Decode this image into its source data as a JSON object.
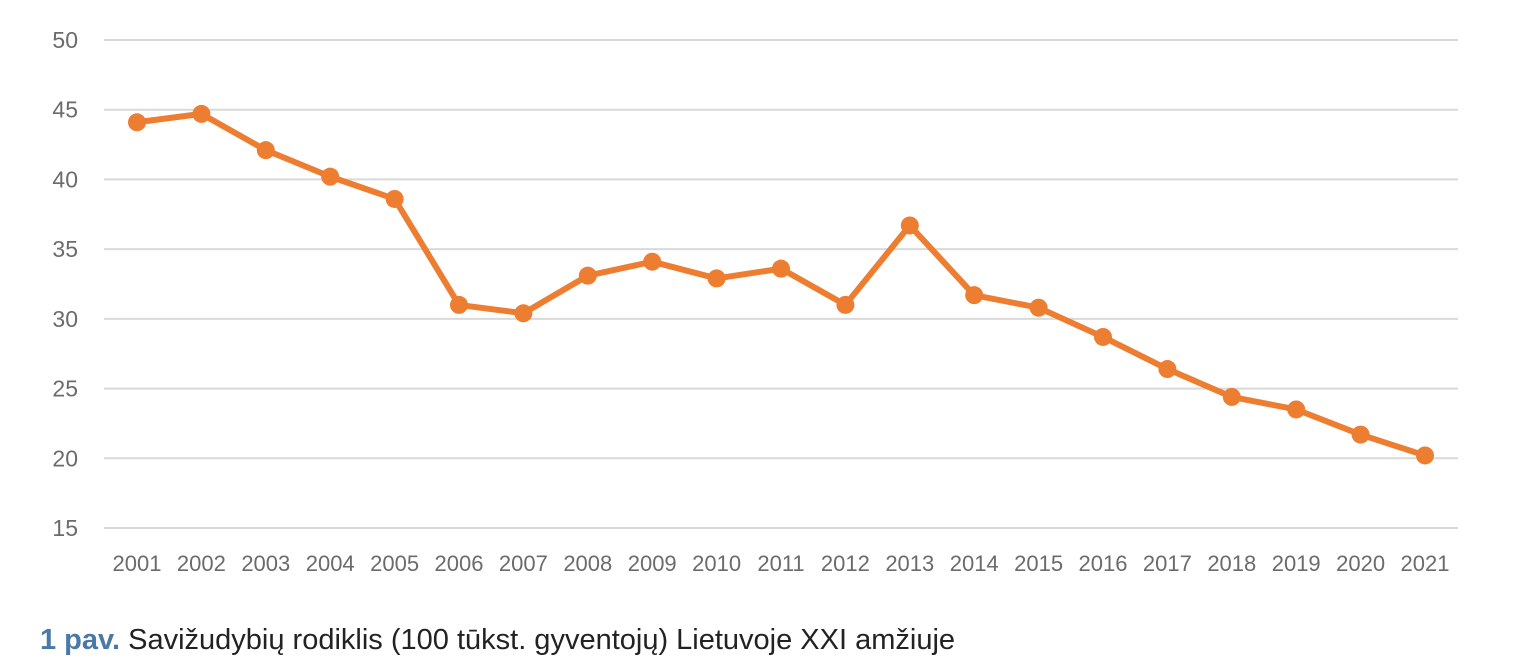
{
  "caption": {
    "label": "1 pav.",
    "text": "Savižudybių rodiklis (100 tūkst. gyventojų) Lietuvoje XXI amžiuje"
  },
  "colors": {
    "line": "#ed7d31",
    "grid": "#d9d9d9",
    "tick_text": "#6b6b6b",
    "caption_label": "#4a79a8"
  },
  "chart_data": {
    "type": "line",
    "title": "",
    "xlabel": "",
    "ylabel": "",
    "ylim": [
      15,
      50
    ],
    "yticks": [
      15,
      20,
      25,
      30,
      35,
      40,
      45,
      50
    ],
    "grid": true,
    "markers": true,
    "categories": [
      "2001",
      "2002",
      "2003",
      "2004",
      "2005",
      "2006",
      "2007",
      "2008",
      "2009",
      "2010",
      "2011",
      "2012",
      "2013",
      "2014",
      "2015",
      "2016",
      "2017",
      "2018",
      "2019",
      "2020",
      "2021"
    ],
    "series": [
      {
        "values": [
          44.1,
          44.7,
          42.1,
          40.2,
          38.6,
          31.0,
          30.4,
          33.1,
          34.1,
          32.9,
          33.6,
          31.0,
          36.7,
          31.7,
          30.8,
          28.7,
          26.4,
          24.4,
          23.5,
          21.7,
          20.2
        ]
      }
    ]
  }
}
